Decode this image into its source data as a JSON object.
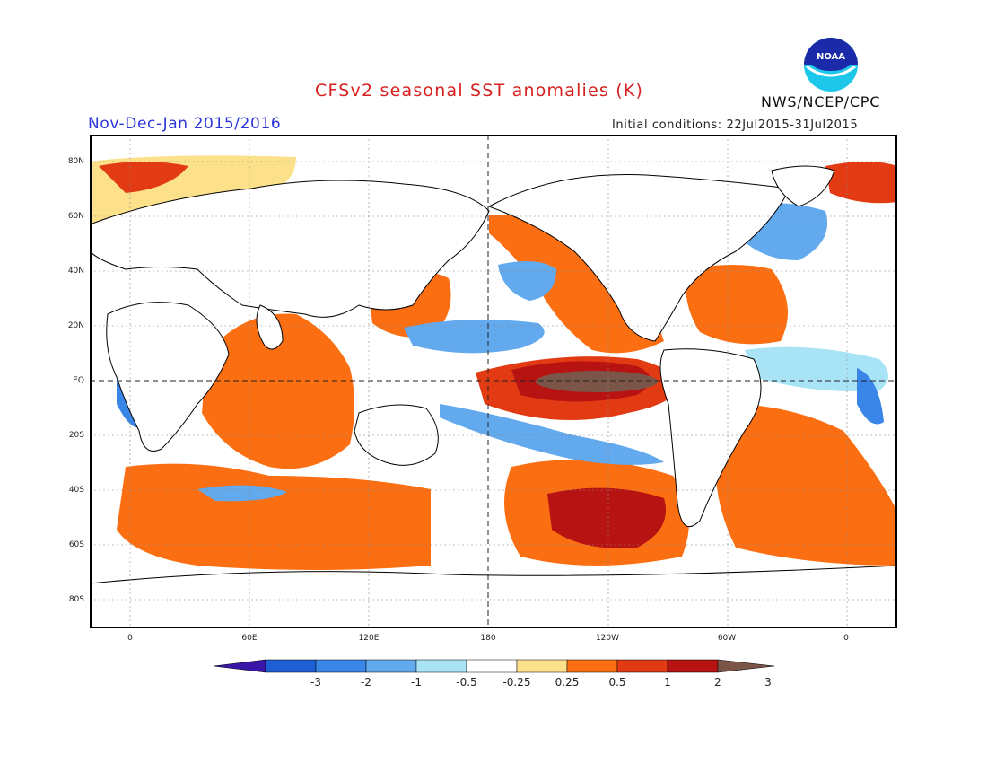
{
  "header": {
    "title": "CFSv2 seasonal SST anomalies (K)",
    "season": "Nov-Dec-Jan 2015/2016",
    "initial_conditions": "Initial conditions: 22Jul2015-31Jul2015",
    "agency": "NWS/NCEP/CPC",
    "logo_text": "NOAA"
  },
  "map": {
    "lat_labels": [
      "80N",
      "60N",
      "40N",
      "20N",
      "EQ",
      "20S",
      "40S",
      "60S",
      "80S"
    ],
    "lon_labels": [
      "0",
      "60E",
      "120E",
      "180",
      "120W",
      "60W",
      "0"
    ]
  },
  "colorbar": {
    "labels": [
      "-3",
      "-2",
      "-1",
      "-0.5",
      "-0.25",
      "0.25",
      "0.5",
      "1",
      "2",
      "3"
    ],
    "colors": [
      "#3a16a8",
      "#1e5fd6",
      "#3a85e8",
      "#62a9ee",
      "#a8e4f5",
      "#ffffff",
      "#fde08a",
      "#fb6f12",
      "#e23a12",
      "#b81313",
      "#7a5548"
    ]
  },
  "colors": {
    "title": "#d62020",
    "season": "#2b35d8",
    "land": "#ffffff",
    "coastline": "#000000"
  }
}
